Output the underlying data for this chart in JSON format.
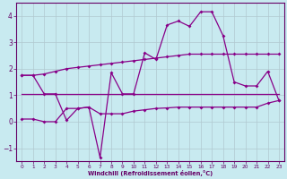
{
  "xlabel": "Windchill (Refroidissement éolien,°C)",
  "background_color": "#c8eaf0",
  "grid_color": "#b0c8d0",
  "line_color": "#880088",
  "xlim": [
    -0.5,
    23.5
  ],
  "ylim": [
    -1.5,
    4.5
  ],
  "xticks": [
    0,
    1,
    2,
    3,
    4,
    5,
    6,
    7,
    8,
    9,
    10,
    11,
    12,
    13,
    14,
    15,
    16,
    17,
    18,
    19,
    20,
    21,
    22,
    23
  ],
  "yticks": [
    -1,
    0,
    1,
    2,
    3,
    4
  ],
  "series1_x": [
    0,
    1,
    2,
    3,
    4,
    5,
    6,
    7,
    8,
    9,
    10,
    11,
    12,
    13,
    14,
    15,
    16,
    17,
    18,
    19,
    20,
    21,
    22,
    23
  ],
  "series1_y": [
    1.75,
    1.75,
    1.8,
    1.9,
    2.0,
    2.05,
    2.1,
    2.15,
    2.2,
    2.25,
    2.3,
    2.35,
    2.4,
    2.45,
    2.5,
    2.55,
    2.55,
    2.55,
    2.55,
    2.55,
    2.55,
    2.55,
    2.55,
    2.55
  ],
  "series2_x": [
    0,
    1,
    2,
    3,
    4,
    5,
    6,
    7,
    8,
    9,
    10,
    11,
    12,
    13,
    14,
    15,
    16,
    17,
    18,
    19,
    20,
    21,
    22,
    23
  ],
  "series2_y": [
    1.75,
    1.75,
    1.05,
    1.05,
    0.05,
    0.5,
    0.55,
    -1.35,
    1.85,
    1.05,
    1.05,
    2.6,
    2.35,
    3.65,
    3.8,
    3.6,
    4.15,
    4.15,
    3.25,
    1.5,
    1.35,
    1.35,
    1.9,
    0.8
  ],
  "series3_x": [
    0,
    1,
    2,
    3,
    4,
    5,
    6,
    7,
    8,
    9,
    10,
    11,
    12,
    13,
    14,
    15,
    16,
    17,
    18,
    19,
    20,
    21,
    22,
    23
  ],
  "series3_y": [
    1.05,
    1.05,
    1.05,
    1.05,
    1.05,
    1.05,
    1.05,
    1.05,
    1.05,
    1.05,
    1.05,
    1.05,
    1.05,
    1.05,
    1.05,
    1.05,
    1.05,
    1.05,
    1.05,
    1.05,
    1.05,
    1.05,
    1.05,
    1.05
  ],
  "series4_x": [
    0,
    1,
    2,
    3,
    4,
    5,
    6,
    7,
    8,
    9,
    10,
    11,
    12,
    13,
    14,
    15,
    16,
    17,
    18,
    19,
    20,
    21,
    22,
    23
  ],
  "series4_y": [
    0.1,
    0.1,
    0.0,
    0.0,
    0.5,
    0.5,
    0.55,
    0.3,
    0.3,
    0.3,
    0.4,
    0.45,
    0.5,
    0.52,
    0.55,
    0.55,
    0.55,
    0.55,
    0.55,
    0.55,
    0.55,
    0.55,
    0.7,
    0.8
  ]
}
